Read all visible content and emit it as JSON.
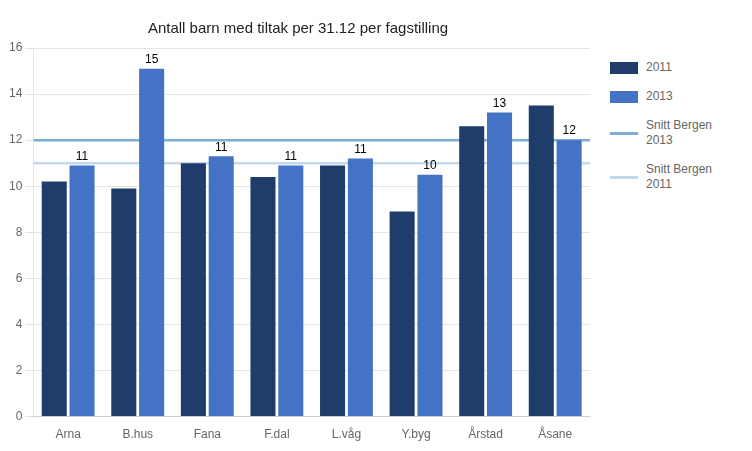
{
  "chart_data": {
    "type": "bar",
    "title": "Antall barn med tiltak per 31.12 per fagstilling",
    "categories": [
      "Arna",
      "B.hus",
      "Fana",
      "F.dal",
      "L.våg",
      "Y.byg",
      "Årstad",
      "Åsane"
    ],
    "series": [
      {
        "name": "2011",
        "color": "#1F3D6B",
        "values": [
          10.2,
          9.9,
          11.0,
          10.4,
          10.9,
          8.9,
          12.6,
          13.5
        ]
      },
      {
        "name": "2013",
        "color": "#4472C4",
        "values": [
          10.9,
          15.1,
          11.3,
          10.9,
          11.2,
          10.5,
          13.2,
          12.0
        ],
        "value_labels": [
          "11",
          "15",
          "11",
          "11",
          "11",
          "10",
          "13",
          "12"
        ],
        "data_labels": true
      }
    ],
    "lines": [
      {
        "name": "Snitt Bergen\n2013",
        "color": "#7BAFD4",
        "value": 12.0
      },
      {
        "name": "Snitt Bergen\n2011",
        "color": "#C5D9ED",
        "value": 11.0
      }
    ],
    "ylim": [
      0,
      16
    ],
    "yticks": [
      0,
      2,
      4,
      6,
      8,
      10,
      12,
      14,
      16
    ],
    "grid": true,
    "legend": "right"
  }
}
